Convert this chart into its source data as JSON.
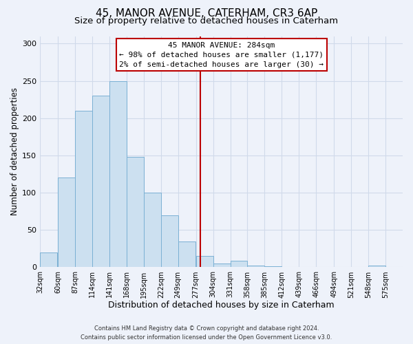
{
  "title": "45, MANOR AVENUE, CATERHAM, CR3 6AP",
  "subtitle": "Size of property relative to detached houses in Caterham",
  "xlabel": "Distribution of detached houses by size in Caterham",
  "ylabel": "Number of detached properties",
  "bar_left_edges": [
    32,
    60,
    87,
    114,
    141,
    168,
    195,
    222,
    249,
    277,
    304,
    331,
    358,
    385,
    412,
    439,
    466,
    494,
    521,
    548
  ],
  "bar_heights": [
    20,
    120,
    210,
    230,
    250,
    148,
    100,
    70,
    35,
    15,
    5,
    9,
    2,
    1,
    0,
    0,
    0,
    0,
    0,
    2
  ],
  "bar_color": "#cce0f0",
  "bar_edgecolor": "#7ab0d4",
  "ylim": [
    0,
    310
  ],
  "yticks": [
    0,
    50,
    100,
    150,
    200,
    250,
    300
  ],
  "xtick_labels": [
    "32sqm",
    "60sqm",
    "87sqm",
    "114sqm",
    "141sqm",
    "168sqm",
    "195sqm",
    "222sqm",
    "249sqm",
    "277sqm",
    "304sqm",
    "331sqm",
    "358sqm",
    "385sqm",
    "412sqm",
    "439sqm",
    "466sqm",
    "494sqm",
    "521sqm",
    "548sqm",
    "575sqm"
  ],
  "xtick_positions": [
    32,
    60,
    87,
    114,
    141,
    168,
    195,
    222,
    249,
    277,
    304,
    331,
    358,
    385,
    412,
    439,
    466,
    494,
    521,
    548,
    575
  ],
  "annotation_line1": "45 MANOR AVENUE: 284sqm",
  "annotation_line2": "← 98% of detached houses are smaller (1,177)",
  "annotation_line3": "2% of semi-detached houses are larger (30) →",
  "vline_x": 284,
  "vline_color": "#bb0000",
  "box_facecolor": "#ffffff",
  "box_edgecolor": "#bb0000",
  "footer_line1": "Contains HM Land Registry data © Crown copyright and database right 2024.",
  "footer_line2": "Contains public sector information licensed under the Open Government Licence v3.0.",
  "background_color": "#eef2fa",
  "grid_color": "#d0daea",
  "title_fontsize": 11,
  "subtitle_fontsize": 9.5,
  "xlabel_fontsize": 9,
  "ylabel_fontsize": 8.5,
  "annotation_fontsize": 8,
  "footer_fontsize": 6,
  "ytick_fontsize": 8,
  "xtick_fontsize": 7
}
